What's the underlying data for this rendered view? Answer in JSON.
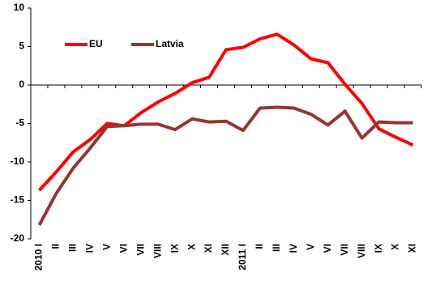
{
  "chart_data": {
    "type": "line",
    "categories": [
      "2010 I",
      "II",
      "III",
      "IV",
      "V",
      "VI",
      "VII",
      "VIII",
      "IX",
      "X",
      "XI",
      "XII",
      "2011 I",
      "II",
      "III",
      "IV",
      "V",
      "VI",
      "VII",
      "VIII",
      "IX",
      "X",
      "XI"
    ],
    "series": [
      {
        "name": "EU",
        "color": "#ff0000",
        "values": [
          -13.7,
          -11.3,
          -8.7,
          -7.1,
          -5.0,
          -5.3,
          -3.6,
          -2.2,
          -1.1,
          0.3,
          1.0,
          4.6,
          4.9,
          6.0,
          6.6,
          5.2,
          3.4,
          2.9,
          0.1,
          -2.4,
          -5.7,
          -6.8,
          -7.8
        ]
      },
      {
        "name": "Latvia",
        "color": "#943634",
        "values": [
          -18.2,
          -14.1,
          -10.8,
          -8.2,
          -5.4,
          -5.3,
          -5.1,
          -5.1,
          -5.8,
          -4.4,
          -4.8,
          -4.7,
          -5.9,
          -3.0,
          -2.9,
          -3.0,
          -3.8,
          -5.2,
          -3.4,
          -6.9,
          -4.8,
          -4.9,
          -4.9
        ]
      }
    ],
    "ylim": [
      -20,
      10
    ],
    "yticks": [
      -20,
      -15,
      -10,
      -5,
      0,
      5,
      10
    ],
    "grid": false,
    "legend": "upper-left"
  }
}
